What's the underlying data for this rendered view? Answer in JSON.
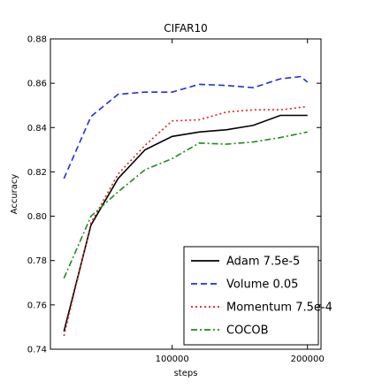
{
  "chart_data": {
    "type": "line",
    "title": "CIFAR10",
    "xlabel": "steps",
    "ylabel": "Accuracy",
    "xlim": [
      10000,
      210000
    ],
    "ylim": [
      0.74,
      0.88
    ],
    "x_ticks": [
      100000,
      200000
    ],
    "x_tick_labels": [
      "100000",
      "200000"
    ],
    "y_ticks": [
      0.74,
      0.76,
      0.78,
      0.8,
      0.82,
      0.84,
      0.86,
      0.88
    ],
    "y_tick_labels": [
      "0.74",
      "0.76",
      "0.78",
      "0.80",
      "0.82",
      "0.84",
      "0.86",
      "0.88"
    ],
    "grid": false,
    "legend_position": "bottom-right",
    "series": [
      {
        "name": "Adam 7.5e-5",
        "color": "#000000",
        "style": "solid",
        "x": [
          20000,
          40000,
          60000,
          80000,
          100000,
          120000,
          140000,
          160000,
          180000,
          200000
        ],
        "y": [
          0.748,
          0.796,
          0.817,
          0.83,
          0.836,
          0.838,
          0.839,
          0.841,
          0.8455,
          0.8455
        ]
      },
      {
        "name": "Volume 0.05",
        "color": "#1f2fe0",
        "style": "dashed",
        "x": [
          20000,
          40000,
          60000,
          80000,
          100000,
          120000,
          140000,
          160000,
          180000,
          195000,
          200000
        ],
        "y": [
          0.817,
          0.845,
          0.855,
          0.856,
          0.856,
          0.8595,
          0.859,
          0.858,
          0.862,
          0.863,
          0.8605
        ]
      },
      {
        "name": "Momentum 7.5e-4",
        "color": "#e02020",
        "style": "dotted",
        "x": [
          20000,
          40000,
          60000,
          80000,
          100000,
          120000,
          140000,
          160000,
          180000,
          200000
        ],
        "y": [
          0.746,
          0.797,
          0.819,
          0.832,
          0.843,
          0.8435,
          0.847,
          0.848,
          0.848,
          0.8495
        ]
      },
      {
        "name": "COCOB",
        "color": "#1a8c1a",
        "style": "dashdot",
        "x": [
          20000,
          40000,
          60000,
          80000,
          100000,
          120000,
          140000,
          160000,
          180000,
          200000
        ],
        "y": [
          0.772,
          0.8,
          0.811,
          0.821,
          0.826,
          0.833,
          0.8325,
          0.8335,
          0.8355,
          0.838
        ]
      }
    ]
  }
}
